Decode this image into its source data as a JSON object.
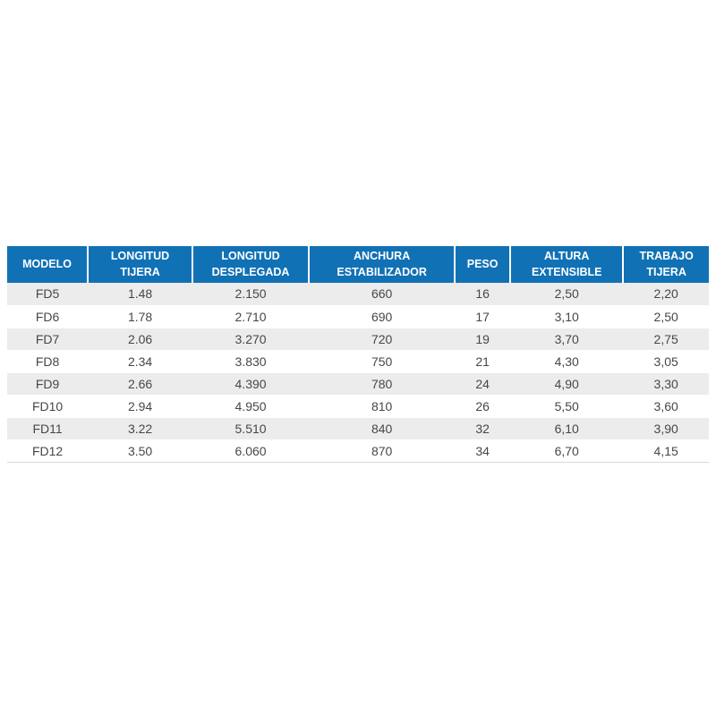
{
  "colors": {
    "header_background": "#1171b5",
    "header_text": "#ffffff",
    "row_alternate": "#ececec",
    "cell_text": "#474747",
    "page_background": "#ffffff"
  },
  "table": {
    "name": "model-specifications-table",
    "columns": [
      "MODELO",
      "LONGITUD TIJERA",
      "LONGITUD DESPLEGADA",
      "ANCHURA ESTABILIZADOR",
      "PESO",
      "ALTURA EXTENSIBLE",
      "TRABAJO TIJERA"
    ],
    "rows": [
      [
        "FD5",
        "1.48",
        "2.150",
        "660",
        "16",
        "2,50",
        "2,20"
      ],
      [
        "FD6",
        "1.78",
        "2.710",
        "690",
        "17",
        "3,10",
        "2,50"
      ],
      [
        "FD7",
        "2.06",
        "3.270",
        "720",
        "19",
        "3,70",
        "2,75"
      ],
      [
        "FD8",
        "2.34",
        "3.830",
        "750",
        "21",
        "4,30",
        "3,05"
      ],
      [
        "FD9",
        "2.66",
        "4.390",
        "780",
        "24",
        "4,90",
        "3,30"
      ],
      [
        "FD10",
        "2.94",
        "4.950",
        "810",
        "26",
        "5,50",
        "3,60"
      ],
      [
        "FD11",
        "3.22",
        "5.510",
        "840",
        "32",
        "6,10",
        "3,90"
      ],
      [
        "FD12",
        "3.50",
        "6.060",
        "870",
        "34",
        "6,70",
        "4,15"
      ]
    ]
  }
}
